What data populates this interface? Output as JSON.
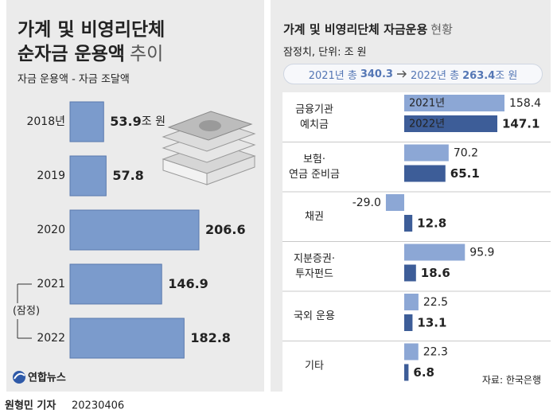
{
  "chart_data": [
    {
      "type": "bar",
      "title": [
        "가계 및 비영리단체",
        "순자금 운용액"
      ],
      "title_suffix": "추이",
      "subtitle": "자금 운용액 - 자금 조달액",
      "categories": [
        "2018년",
        "2019",
        "2020",
        "2021",
        "2022"
      ],
      "values": [
        53.9,
        57.8,
        206.6,
        146.9,
        182.8
      ],
      "unit": "조 원",
      "color": "#7b9bcc",
      "annotation": "(잠정)"
    },
    {
      "type": "grouped-bar",
      "title": "가계 및 비영리단체 자금운용",
      "title_suffix": "현황",
      "subtitle": "잠정치, 단위: 조 원",
      "summary": {
        "from_label": "2021년 총",
        "from_value": 340.3,
        "to_label": "2022년 총",
        "to_value": 263.4,
        "unit": "조 원"
      },
      "categories": [
        [
          "금융기관",
          "예치금"
        ],
        [
          "보험·",
          "연금 준비금"
        ],
        [
          "채권"
        ],
        [
          "지분증권·",
          "투자펀드"
        ],
        [
          "국외 운용"
        ],
        [
          "기타"
        ]
      ],
      "series": [
        {
          "name": "2021년",
          "color": "#8ca7d5",
          "values": [
            158.4,
            70.2,
            -29.0,
            95.9,
            22.5,
            22.3
          ],
          "value_labels": [
            "158.4",
            "70.2",
            "-29.0",
            "95.9",
            "22.5",
            "22.3"
          ]
        },
        {
          "name": "2022년",
          "color": "#3d5d98",
          "values": [
            147.1,
            65.1,
            12.8,
            18.6,
            13.1,
            6.8
          ]
        }
      ],
      "source": "자료: 한국은행"
    }
  ],
  "logo": "연합뉴스",
  "byline": {
    "reporter": "원형민 기자",
    "date": "20230406"
  }
}
